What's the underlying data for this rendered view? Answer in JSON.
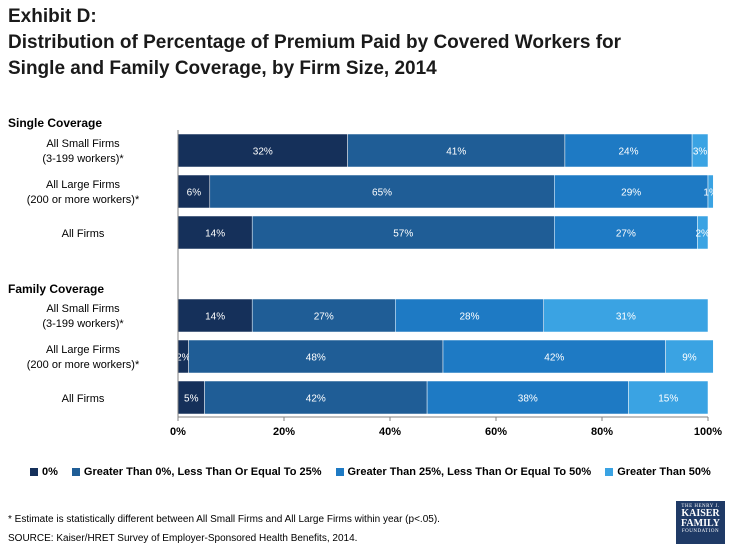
{
  "header": {
    "exhibit": "Exhibit D:",
    "title_line1": "Distribution of Percentage of Premium Paid by Covered Workers for",
    "title_line2": "Single and Family Coverage, by Firm Size, 2014"
  },
  "groups": {
    "single": "Single Coverage",
    "family": "Family Coverage"
  },
  "row_labels": {
    "small_line1": "All Small Firms",
    "small_line2": "(3-199 workers)*",
    "large_line1": "All Large Firms",
    "large_line2": "(200 or more workers)*",
    "all": "All Firms"
  },
  "chart_data": {
    "type": "bar",
    "orientation": "horizontal",
    "stacked": true,
    "title": "Distribution of Percentage of Premium Paid by Covered Workers for Single and Family Coverage, by Firm Size, 2014",
    "xlim": [
      0,
      100
    ],
    "x_ticks": [
      "0%",
      "20%",
      "40%",
      "60%",
      "80%",
      "100%"
    ],
    "categories": [
      "Single: All Small Firms (3-199 workers)*",
      "Single: All Large Firms (200 or more workers)*",
      "Single: All Firms",
      "Family: All Small Firms (3-199 workers)*",
      "Family: All Large Firms (200 or more workers)*",
      "Family: All Firms"
    ],
    "series": [
      {
        "name": "0%",
        "color": "#15305a",
        "values": [
          32,
          6,
          14,
          14,
          2,
          5
        ]
      },
      {
        "name": "Greater Than 0%, Less Than Or Equal To 25%",
        "color": "#1f5d96",
        "values": [
          41,
          65,
          57,
          27,
          48,
          42
        ]
      },
      {
        "name": "Greater Than 25%, Less Than Or Equal To 50%",
        "color": "#1e7ac4",
        "values": [
          24,
          29,
          27,
          28,
          42,
          38
        ]
      },
      {
        "name": "Greater Than 50%",
        "color": "#3aa3e3",
        "values": [
          3,
          1,
          2,
          31,
          9,
          15
        ]
      }
    ],
    "data_labels": [
      [
        "32%",
        "41%",
        "24%",
        "3%"
      ],
      [
        "6%",
        "65%",
        "29%",
        "1%"
      ],
      [
        "14%",
        "57%",
        "27%",
        "2%"
      ],
      [
        "14%",
        "27%",
        "28%",
        "31%"
      ],
      [
        "2%",
        "48%",
        "42%",
        "9%"
      ],
      [
        "5%",
        "42%",
        "38%",
        "15%"
      ]
    ],
    "legend_position": "bottom"
  },
  "footnote": "* Estimate is statistically different between All Small Firms and All Large Firms within year (p<.05).",
  "source": "SOURCE:  Kaiser/HRET Survey of Employer-Sponsored Health Benefits, 2014.",
  "logo": {
    "line1": "THE HENRY J.",
    "line2": "KAISER",
    "line3": "FAMILY",
    "line4": "FOUNDATION"
  }
}
